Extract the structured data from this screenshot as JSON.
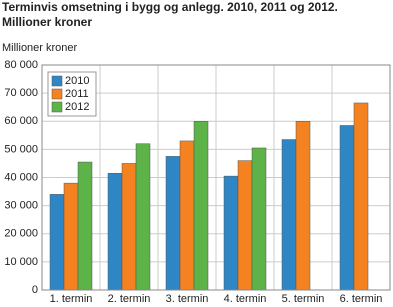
{
  "chart_data": {
    "type": "bar",
    "title": "Terminvis omsetning i bygg og anlegg. 2010, 2011 og 2012.",
    "subtitle": "Millioner kroner",
    "y_label": "Millioner kroner",
    "categories": [
      "1. termin",
      "2. termin",
      "3. termin",
      "4. termin",
      "5. termin",
      "6. termin"
    ],
    "series": [
      {
        "name": "2010",
        "color": "#2e86c4",
        "values": [
          34000,
          41500,
          47500,
          40500,
          53500,
          58500
        ]
      },
      {
        "name": "2011",
        "color": "#f58220",
        "values": [
          38000,
          45000,
          53000,
          46000,
          60000,
          66500
        ]
      },
      {
        "name": "2012",
        "color": "#5db248",
        "values": [
          45500,
          52000,
          60000,
          50500,
          null,
          null
        ]
      }
    ],
    "ylim": [
      0,
      80000
    ],
    "yticks": [
      0,
      {
        "value": 10000,
        "label": "10 000"
      },
      {
        "value": 20000,
        "label": "20 000"
      },
      {
        "value": 30000,
        "label": "30 000"
      },
      {
        "value": 40000,
        "label": "40 000"
      },
      {
        "value": 50000,
        "label": "50 000"
      },
      {
        "value": 60000,
        "label": "60 000"
      },
      {
        "value": 70000,
        "label": "70 000"
      },
      {
        "value": 80000,
        "label": "80 000"
      }
    ],
    "grid": true,
    "legend": "top-left"
  }
}
